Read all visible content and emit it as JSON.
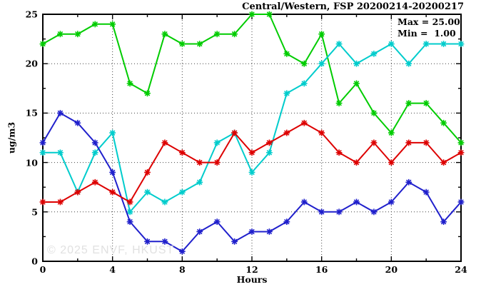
{
  "title": "Central/Western, FSP 20200214-20200217",
  "legend": {
    "max_label": "Max = 25.00",
    "min_label": "Min =  1.00"
  },
  "watermark": "© 2025 ENVF, HKUST",
  "chart_data": {
    "type": "line",
    "title": "Central/Western, FSP 20200214-20200217",
    "xlabel": "Hours",
    "ylabel": "ug/m3",
    "xlim": [
      0,
      24
    ],
    "ylim": [
      0,
      25
    ],
    "grid": true,
    "legend_position": "top-right-inside",
    "annotations": [
      "Max = 25.00",
      "Min =  1.00"
    ],
    "x": [
      0,
      1,
      2,
      3,
      4,
      5,
      6,
      7,
      8,
      9,
      10,
      11,
      12,
      13,
      14,
      15,
      16,
      17,
      18,
      19,
      20,
      21,
      22,
      23,
      24
    ],
    "xticks": [
      0,
      4,
      8,
      12,
      16,
      20,
      24
    ],
    "xticks_minor": [
      2,
      6,
      10,
      14,
      18,
      22
    ],
    "yticks": [
      0,
      5,
      10,
      15,
      20,
      25
    ],
    "yticks_minor": [
      2.5,
      7.5,
      12.5,
      17.5,
      22.5
    ],
    "grid_x": [
      4,
      8,
      12,
      16,
      20
    ],
    "grid_y": [
      5,
      10,
      15,
      20
    ],
    "max": 25.0,
    "min": 1.0,
    "series": [
      {
        "name": "series-green",
        "color": "#00cc00",
        "values": [
          22,
          23,
          23,
          24,
          24,
          18,
          17,
          23,
          22,
          22,
          23,
          23,
          25,
          25,
          21,
          20,
          23,
          16,
          18,
          15,
          13,
          16,
          16,
          14,
          12
        ]
      },
      {
        "name": "series-cyan",
        "color": "#00cccc",
        "values": [
          11,
          11,
          7,
          11,
          13,
          5,
          7,
          6,
          7,
          8,
          12,
          13,
          9,
          11,
          17,
          18,
          20,
          22,
          20,
          21,
          22,
          20,
          22,
          22,
          22
        ]
      },
      {
        "name": "series-blue",
        "color": "#2020cc",
        "values": [
          12,
          15,
          14,
          12,
          9,
          4,
          2,
          2,
          1,
          3,
          4,
          2,
          3,
          3,
          4,
          6,
          5,
          5,
          6,
          5,
          6,
          8,
          7,
          4,
          6
        ]
      },
      {
        "name": "series-red",
        "color": "#dd0000",
        "values": [
          6,
          6,
          7,
          8,
          7,
          6,
          9,
          12,
          11,
          10,
          10,
          13,
          11,
          12,
          13,
          14,
          13,
          11,
          10,
          12,
          10,
          12,
          12,
          10,
          11
        ]
      }
    ]
  }
}
